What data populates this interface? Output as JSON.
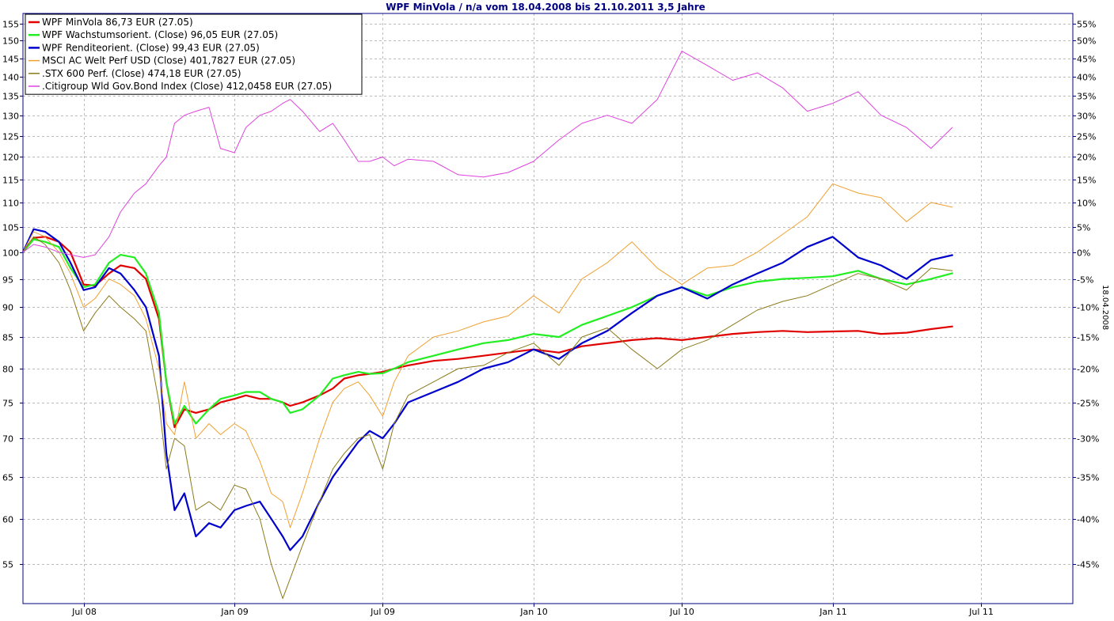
{
  "chart_data": {
    "type": "line",
    "title": "WPF MinVola / n/a vom 18.04.2008 bis 21.10.2011 3,5 Jahre",
    "right_axis_label": "18.04.2008",
    "x_range": [
      "2008-04-18",
      "2011-10-21"
    ],
    "x_ticks": [
      {
        "date": "2008-07-01",
        "label": "Jul 08"
      },
      {
        "date": "2009-01-01",
        "label": "Jan 09"
      },
      {
        "date": "2009-07-01",
        "label": "Jul 09"
      },
      {
        "date": "2010-01-01",
        "label": "Jan 10"
      },
      {
        "date": "2010-07-01",
        "label": "Jul 10"
      },
      {
        "date": "2011-01-01",
        "label": "Jan 11"
      },
      {
        "date": "2011-07-01",
        "label": "Jul 11"
      }
    ],
    "y_scale": "log",
    "y_range": [
      51,
      158
    ],
    "y_ticks": [
      55,
      60,
      65,
      70,
      75,
      80,
      85,
      90,
      95,
      100,
      105,
      110,
      115,
      120,
      125,
      130,
      135,
      140,
      145,
      150,
      155
    ],
    "y2_ticks": [
      {
        "value": 55,
        "label": "55%"
      },
      {
        "value": 50,
        "label": "50%"
      },
      {
        "value": 45,
        "label": "45%"
      },
      {
        "value": 40,
        "label": "40%"
      },
      {
        "value": 35,
        "label": "35%"
      },
      {
        "value": 30,
        "label": "30%"
      },
      {
        "value": 25,
        "label": "25%"
      },
      {
        "value": 20,
        "label": "20%"
      },
      {
        "value": 15,
        "label": "15%"
      },
      {
        "value": 10,
        "label": "10%"
      },
      {
        "value": 5,
        "label": "5%"
      },
      {
        "value": 0,
        "label": "0%"
      },
      {
        "value": -5,
        "label": "-5%"
      },
      {
        "value": -10,
        "label": "-10%"
      },
      {
        "value": -15,
        "label": "-15%"
      },
      {
        "value": -20,
        "label": "-20%"
      },
      {
        "value": -25,
        "label": "-25%"
      },
      {
        "value": -30,
        "label": "-30%"
      },
      {
        "value": -35,
        "label": "-35%"
      },
      {
        "value": -40,
        "label": "-40%"
      },
      {
        "value": -45,
        "label": "-45%"
      }
    ],
    "grid": true,
    "legend_position": "top-left",
    "series": [
      {
        "name": "WPF MinVola 86,73 EUR (27.05)",
        "color": "#e00000",
        "width": 2.2,
        "x": [
          "2008-04-18",
          "2008-05-01",
          "2008-05-15",
          "2008-06-01",
          "2008-06-15",
          "2008-07-01",
          "2008-07-15",
          "2008-08-01",
          "2008-08-15",
          "2008-09-01",
          "2008-09-15",
          "2008-10-01",
          "2008-10-10",
          "2008-10-20",
          "2008-11-01",
          "2008-11-15",
          "2008-12-01",
          "2008-12-15",
          "2009-01-01",
          "2009-01-15",
          "2009-02-01",
          "2009-02-15",
          "2009-03-01",
          "2009-03-10",
          "2009-03-25",
          "2009-04-15",
          "2009-05-01",
          "2009-05-15",
          "2009-06-01",
          "2009-06-15",
          "2009-07-01",
          "2009-07-15",
          "2009-08-01",
          "2009-09-01",
          "2009-10-01",
          "2009-11-01",
          "2009-12-01",
          "2010-01-01",
          "2010-02-01",
          "2010-03-01",
          "2010-04-01",
          "2010-05-01",
          "2010-06-01",
          "2010-07-01",
          "2010-08-01",
          "2010-09-01",
          "2010-10-01",
          "2010-11-01",
          "2010-12-01",
          "2011-01-01",
          "2011-02-01",
          "2011-03-01",
          "2011-04-01",
          "2011-05-01",
          "2011-05-27"
        ],
        "y": [
          100.0,
          102.8,
          103.0,
          102.0,
          100.0,
          94.0,
          93.8,
          96.0,
          97.5,
          97.0,
          95.0,
          88.0,
          78.0,
          71.5,
          74.0,
          73.5,
          74.0,
          75.0,
          75.5,
          76.0,
          75.5,
          75.5,
          75.0,
          74.5,
          75.0,
          76.0,
          77.0,
          78.5,
          79.0,
          79.2,
          79.5,
          80.0,
          80.5,
          81.2,
          81.5,
          82.0,
          82.5,
          83.0,
          82.5,
          83.5,
          84.0,
          84.5,
          84.8,
          84.5,
          85.0,
          85.5,
          85.8,
          86.0,
          85.8,
          85.9,
          86.0,
          85.5,
          85.7,
          86.3,
          86.73
        ]
      },
      {
        "name": "WPF Wachstumsorient. (Close) 96,05 EUR (27.05)",
        "color": "#22ee22",
        "width": 2.2,
        "x": [
          "2008-04-18",
          "2008-05-01",
          "2008-05-15",
          "2008-06-01",
          "2008-06-15",
          "2008-07-01",
          "2008-07-15",
          "2008-08-01",
          "2008-08-15",
          "2008-09-01",
          "2008-09-15",
          "2008-10-01",
          "2008-10-10",
          "2008-10-20",
          "2008-11-01",
          "2008-11-15",
          "2008-12-01",
          "2008-12-15",
          "2009-01-01",
          "2009-01-15",
          "2009-02-01",
          "2009-02-15",
          "2009-03-01",
          "2009-03-10",
          "2009-03-25",
          "2009-04-15",
          "2009-05-01",
          "2009-05-15",
          "2009-06-01",
          "2009-06-15",
          "2009-07-01",
          "2009-07-15",
          "2009-08-01",
          "2009-09-01",
          "2009-10-01",
          "2009-11-01",
          "2009-12-01",
          "2010-01-01",
          "2010-02-01",
          "2010-03-01",
          "2010-04-01",
          "2010-05-01",
          "2010-06-01",
          "2010-07-01",
          "2010-08-01",
          "2010-09-01",
          "2010-10-01",
          "2010-11-01",
          "2010-12-01",
          "2011-01-01",
          "2011-02-01",
          "2011-03-01",
          "2011-04-01",
          "2011-05-01",
          "2011-05-27"
        ],
        "y": [
          100.0,
          102.5,
          102.0,
          101.0,
          97.0,
          93.5,
          94.0,
          98.0,
          99.5,
          99.0,
          96.0,
          89.0,
          78.0,
          72.0,
          74.5,
          72.0,
          74.0,
          75.5,
          76.0,
          76.5,
          76.5,
          75.5,
          75.0,
          73.5,
          74.0,
          76.0,
          78.5,
          79.0,
          79.5,
          79.2,
          79.3,
          80.0,
          81.0,
          82.0,
          83.0,
          84.0,
          84.5,
          85.5,
          85.0,
          87.0,
          88.5,
          90.0,
          92.0,
          93.5,
          92.0,
          93.5,
          94.5,
          95.0,
          95.2,
          95.5,
          96.5,
          95.0,
          94.0,
          95.0,
          96.05
        ]
      },
      {
        "name": "WPF Renditeorient. (Close) 99,43 EUR (27.05)",
        "color": "#0000cc",
        "width": 2.2,
        "x": [
          "2008-04-18",
          "2008-05-01",
          "2008-05-15",
          "2008-06-01",
          "2008-06-15",
          "2008-07-01",
          "2008-07-15",
          "2008-08-01",
          "2008-08-15",
          "2008-09-01",
          "2008-09-15",
          "2008-10-01",
          "2008-10-10",
          "2008-10-20",
          "2008-11-01",
          "2008-11-15",
          "2008-12-01",
          "2008-12-15",
          "2009-01-01",
          "2009-01-15",
          "2009-02-01",
          "2009-02-15",
          "2009-03-01",
          "2009-03-10",
          "2009-03-25",
          "2009-04-15",
          "2009-05-01",
          "2009-05-15",
          "2009-06-01",
          "2009-06-15",
          "2009-07-01",
          "2009-07-15",
          "2009-08-01",
          "2009-09-01",
          "2009-10-01",
          "2009-11-01",
          "2009-12-01",
          "2010-01-01",
          "2010-02-01",
          "2010-03-01",
          "2010-04-01",
          "2010-05-01",
          "2010-06-01",
          "2010-07-01",
          "2010-08-01",
          "2010-09-01",
          "2010-10-01",
          "2010-11-01",
          "2010-12-01",
          "2011-01-01",
          "2011-02-01",
          "2011-03-01",
          "2011-04-01",
          "2011-05-01",
          "2011-05-27"
        ],
        "y": [
          100.0,
          104.5,
          104.0,
          102.0,
          98.0,
          93.0,
          93.5,
          97.0,
          96.0,
          93.0,
          90.0,
          82.0,
          68.0,
          61.0,
          63.0,
          58.0,
          59.5,
          59.0,
          61.0,
          61.5,
          62.0,
          60.0,
          58.0,
          56.5,
          58.0,
          62.0,
          65.0,
          67.0,
          69.5,
          71.0,
          70.0,
          72.0,
          75.0,
          76.5,
          78.0,
          80.0,
          81.0,
          83.0,
          81.5,
          84.0,
          86.0,
          89.0,
          92.0,
          93.5,
          91.5,
          94.0,
          96.0,
          98.0,
          101.0,
          103.0,
          99.0,
          97.5,
          95.0,
          98.5,
          99.43
        ]
      },
      {
        "name": "MSCI AC Welt Perf USD (Close) 401,7827 EUR (27.05)",
        "color": "#f0a030",
        "width": 1,
        "x": [
          "2008-04-18",
          "2008-05-01",
          "2008-05-15",
          "2008-06-01",
          "2008-06-15",
          "2008-07-01",
          "2008-07-15",
          "2008-08-01",
          "2008-08-15",
          "2008-09-01",
          "2008-09-15",
          "2008-10-01",
          "2008-10-10",
          "2008-10-20",
          "2008-11-01",
          "2008-11-15",
          "2008-12-01",
          "2008-12-15",
          "2009-01-01",
          "2009-01-15",
          "2009-02-01",
          "2009-02-15",
          "2009-03-01",
          "2009-03-10",
          "2009-03-25",
          "2009-04-15",
          "2009-05-01",
          "2009-05-15",
          "2009-06-01",
          "2009-06-15",
          "2009-07-01",
          "2009-07-15",
          "2009-08-01",
          "2009-09-01",
          "2009-10-01",
          "2009-11-01",
          "2009-12-01",
          "2010-01-01",
          "2010-02-01",
          "2010-03-01",
          "2010-04-01",
          "2010-05-01",
          "2010-06-01",
          "2010-07-01",
          "2010-08-01",
          "2010-09-01",
          "2010-10-01",
          "2010-11-01",
          "2010-12-01",
          "2011-01-01",
          "2011-02-01",
          "2011-03-01",
          "2011-04-01",
          "2011-05-01",
          "2011-05-27"
        ],
        "y": [
          100.0,
          104.0,
          103.0,
          100.0,
          96.0,
          90.0,
          91.5,
          95.0,
          94.0,
          92.0,
          88.0,
          80.0,
          72.0,
          70.5,
          78.0,
          70.0,
          72.0,
          70.5,
          72.0,
          71.0,
          67.0,
          63.0,
          62.0,
          59.0,
          63.0,
          70.0,
          75.0,
          77.0,
          78.0,
          76.0,
          73.0,
          78.0,
          82.0,
          85.0,
          86.0,
          87.5,
          88.5,
          92.0,
          89.0,
          95.0,
          98.0,
          102.0,
          97.0,
          94.0,
          97.0,
          97.5,
          100.0,
          103.5,
          107.0,
          114.0,
          112.0,
          111.0,
          106.0,
          110.0,
          109.0
        ]
      },
      {
        "name": ".STX 600 Perf. (Close) 474,18 EUR (27.05)",
        "color": "#8b7a1a",
        "width": 1,
        "x": [
          "2008-04-18",
          "2008-05-01",
          "2008-05-15",
          "2008-06-01",
          "2008-06-15",
          "2008-07-01",
          "2008-07-15",
          "2008-08-01",
          "2008-08-15",
          "2008-09-01",
          "2008-09-15",
          "2008-10-01",
          "2008-10-10",
          "2008-10-20",
          "2008-11-01",
          "2008-11-15",
          "2008-12-01",
          "2008-12-15",
          "2009-01-01",
          "2009-01-15",
          "2009-02-01",
          "2009-02-15",
          "2009-03-01",
          "2009-03-10",
          "2009-03-25",
          "2009-04-15",
          "2009-05-01",
          "2009-05-15",
          "2009-06-01",
          "2009-06-15",
          "2009-07-01",
          "2009-07-15",
          "2009-08-01",
          "2009-09-01",
          "2009-10-01",
          "2009-11-01",
          "2009-12-01",
          "2010-01-01",
          "2010-02-01",
          "2010-03-01",
          "2010-04-01",
          "2010-05-01",
          "2010-06-01",
          "2010-07-01",
          "2010-08-01",
          "2010-09-01",
          "2010-10-01",
          "2010-11-01",
          "2010-12-01",
          "2011-01-01",
          "2011-02-01",
          "2011-03-01",
          "2011-04-01",
          "2011-05-01",
          "2011-05-27"
        ],
        "y": [
          100.0,
          103.0,
          101.5,
          98.0,
          93.0,
          86.0,
          89.0,
          92.0,
          90.0,
          88.0,
          86.0,
          75.0,
          66.0,
          70.0,
          69.0,
          61.0,
          62.0,
          61.0,
          64.0,
          63.5,
          60.0,
          55.0,
          51.5,
          53.5,
          57.0,
          62.0,
          66.0,
          68.0,
          70.0,
          70.5,
          66.0,
          72.0,
          76.0,
          78.0,
          80.0,
          80.5,
          82.5,
          84.0,
          80.5,
          85.0,
          86.5,
          83.0,
          80.0,
          83.0,
          84.5,
          87.0,
          89.5,
          91.0,
          92.0,
          94.0,
          96.0,
          95.0,
          93.0,
          97.0,
          96.5
        ]
      },
      {
        "name": ".Citigroup Wld Gov.Bond Index (Close) 412,0458 EUR (27.05)",
        "color": "#dd44dd",
        "width": 1,
        "x": [
          "2008-04-18",
          "2008-05-01",
          "2008-05-15",
          "2008-06-01",
          "2008-06-15",
          "2008-07-01",
          "2008-07-15",
          "2008-08-01",
          "2008-08-15",
          "2008-09-01",
          "2008-09-15",
          "2008-10-01",
          "2008-10-10",
          "2008-10-20",
          "2008-11-01",
          "2008-11-15",
          "2008-12-01",
          "2008-12-15",
          "2009-01-01",
          "2009-01-15",
          "2009-02-01",
          "2009-02-15",
          "2009-03-01",
          "2009-03-10",
          "2009-03-25",
          "2009-04-15",
          "2009-05-01",
          "2009-05-15",
          "2009-06-01",
          "2009-06-15",
          "2009-07-01",
          "2009-07-15",
          "2009-08-01",
          "2009-09-01",
          "2009-10-01",
          "2009-11-01",
          "2009-12-01",
          "2010-01-01",
          "2010-02-01",
          "2010-03-01",
          "2010-04-01",
          "2010-05-01",
          "2010-06-01",
          "2010-07-01",
          "2010-08-01",
          "2010-09-01",
          "2010-10-01",
          "2010-11-01",
          "2010-12-01",
          "2011-01-01",
          "2011-02-01",
          "2011-03-01",
          "2011-04-01",
          "2011-05-01",
          "2011-05-27"
        ],
        "y": [
          100.0,
          101.5,
          101.0,
          100.0,
          99.5,
          99.0,
          99.5,
          103.0,
          108.0,
          112.0,
          114.0,
          118.0,
          120.0,
          128.0,
          130.0,
          131.0,
          132.0,
          122.0,
          121.0,
          127.0,
          130.0,
          131.0,
          133.0,
          134.0,
          131.0,
          126.0,
          128.0,
          124.0,
          119.0,
          119.0,
          120.0,
          118.0,
          119.5,
          119.0,
          116.0,
          115.5,
          116.5,
          119.0,
          124.0,
          128.0,
          130.0,
          128.0,
          134.0,
          147.0,
          143.0,
          139.0,
          141.0,
          137.0,
          131.0,
          133.0,
          136.0,
          130.0,
          127.0,
          122.0,
          127.0
        ]
      }
    ]
  }
}
